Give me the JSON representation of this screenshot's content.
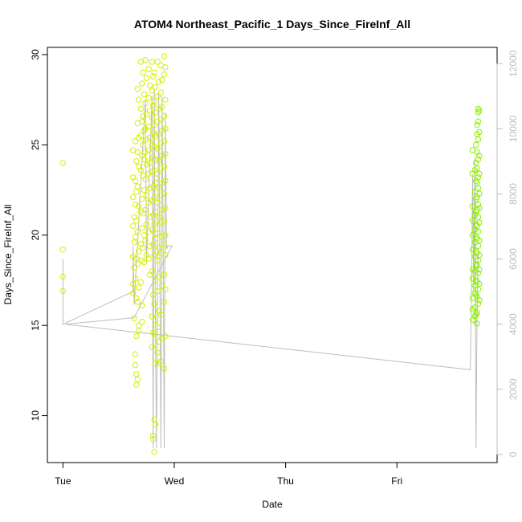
{
  "chart_data": {
    "type": "scatter",
    "title": "ATOM4 Northeast_Pacific_1 Days_Since_FireInf_All",
    "xlabel": "Date",
    "ylabel": "Days_Since_FireInf_All",
    "x_ticks": [
      "Tue",
      "Wed",
      "Thu",
      "Fri"
    ],
    "x_ticks_pos": [
      0,
      1,
      2,
      3
    ],
    "xlim": [
      -0.14,
      3.9
    ],
    "ylim": [
      7.4,
      30.4
    ],
    "y_ticks": [
      10,
      15,
      20,
      25,
      30
    ],
    "y2lim": [
      -250,
      12500
    ],
    "y2_ticks": [
      0,
      2000,
      4000,
      6000,
      8000,
      10000,
      12000
    ],
    "grid": false,
    "colors": {
      "points_early": "#d4f000",
      "points_late": "#8cee00",
      "secondary_line": "#bdbdbd"
    },
    "series": [
      {
        "points": [
          [
            0.0,
            24.0
          ],
          [
            0.0,
            19.2
          ],
          [
            0.0,
            17.7
          ],
          [
            0.0,
            16.9
          ],
          [
            0.63,
            24.7
          ],
          [
            0.63,
            23.2
          ],
          [
            0.63,
            22.1
          ],
          [
            0.64,
            21.0
          ],
          [
            0.63,
            20.5
          ],
          [
            0.64,
            19.6
          ],
          [
            0.63,
            18.8
          ],
          [
            0.64,
            18.2
          ],
          [
            0.63,
            17.3
          ],
          [
            0.63,
            16.8
          ],
          [
            0.64,
            15.4
          ],
          [
            0.65,
            25.2
          ],
          [
            0.66,
            24.1
          ],
          [
            0.65,
            23.0
          ],
          [
            0.66,
            22.4
          ],
          [
            0.65,
            21.7
          ],
          [
            0.66,
            20.8
          ],
          [
            0.65,
            19.9
          ],
          [
            0.66,
            18.7
          ],
          [
            0.65,
            17.6
          ],
          [
            0.66,
            16.5
          ],
          [
            0.66,
            14.4
          ],
          [
            0.65,
            12.8
          ],
          [
            0.66,
            12.3
          ],
          [
            0.66,
            11.7
          ],
          [
            0.65,
            13.4
          ],
          [
            0.67,
            28.1
          ],
          [
            0.68,
            27.5
          ],
          [
            0.67,
            26.2
          ],
          [
            0.68,
            25.4
          ],
          [
            0.67,
            24.6
          ],
          [
            0.68,
            23.8
          ],
          [
            0.67,
            22.7
          ],
          [
            0.68,
            21.6
          ],
          [
            0.67,
            20.2
          ],
          [
            0.68,
            19.1
          ],
          [
            0.67,
            18.4
          ],
          [
            0.68,
            17.1
          ],
          [
            0.67,
            16.3
          ],
          [
            0.68,
            15.0
          ],
          [
            0.68,
            14.7
          ],
          [
            0.67,
            12.0
          ],
          [
            0.7,
            29.6
          ],
          [
            0.71,
            28.4
          ],
          [
            0.7,
            27.0
          ],
          [
            0.71,
            26.3
          ],
          [
            0.7,
            25.5
          ],
          [
            0.71,
            24.4
          ],
          [
            0.7,
            23.6
          ],
          [
            0.71,
            22.0
          ],
          [
            0.7,
            21.3
          ],
          [
            0.71,
            20.4
          ],
          [
            0.7,
            19.5
          ],
          [
            0.71,
            18.6
          ],
          [
            0.7,
            17.4
          ],
          [
            0.71,
            16.1
          ],
          [
            0.71,
            15.2
          ],
          [
            0.72,
            29.0
          ],
          [
            0.73,
            27.8
          ],
          [
            0.72,
            26.6
          ],
          [
            0.73,
            25.8
          ],
          [
            0.72,
            25.0
          ],
          [
            0.73,
            24.2
          ],
          [
            0.72,
            23.3
          ],
          [
            0.73,
            22.5
          ],
          [
            0.72,
            21.2
          ],
          [
            0.73,
            20.0
          ],
          [
            0.72,
            19.3
          ],
          [
            0.73,
            18.5
          ],
          [
            0.74,
            29.7
          ],
          [
            0.75,
            28.7
          ],
          [
            0.74,
            27.3
          ],
          [
            0.75,
            26.7
          ],
          [
            0.74,
            25.9
          ],
          [
            0.75,
            25.3
          ],
          [
            0.74,
            24.6
          ],
          [
            0.75,
            23.9
          ],
          [
            0.74,
            23.1
          ],
          [
            0.75,
            22.2
          ],
          [
            0.74,
            21.4
          ],
          [
            0.75,
            20.6
          ],
          [
            0.74,
            19.7
          ],
          [
            0.75,
            18.9
          ],
          [
            0.77,
            29.2
          ],
          [
            0.78,
            28.3
          ],
          [
            0.77,
            27.6
          ],
          [
            0.78,
            26.9
          ],
          [
            0.77,
            26.0
          ],
          [
            0.78,
            25.4
          ],
          [
            0.77,
            24.7
          ],
          [
            0.78,
            24.0
          ],
          [
            0.77,
            23.4
          ],
          [
            0.78,
            22.6
          ],
          [
            0.77,
            21.8
          ],
          [
            0.78,
            21.0
          ],
          [
            0.77,
            20.2
          ],
          [
            0.78,
            19.4
          ],
          [
            0.77,
            18.7
          ],
          [
            0.78,
            17.8
          ],
          [
            0.8,
            29.6
          ],
          [
            0.81,
            28.8
          ],
          [
            0.8,
            28.0
          ],
          [
            0.81,
            27.2
          ],
          [
            0.8,
            26.5
          ],
          [
            0.81,
            25.7
          ],
          [
            0.8,
            25.0
          ],
          [
            0.81,
            24.3
          ],
          [
            0.8,
            23.5
          ],
          [
            0.81,
            22.7
          ],
          [
            0.8,
            21.9
          ],
          [
            0.81,
            21.1
          ],
          [
            0.8,
            20.3
          ],
          [
            0.81,
            19.5
          ],
          [
            0.8,
            18.0
          ],
          [
            0.81,
            16.7
          ],
          [
            0.8,
            15.5
          ],
          [
            0.81,
            14.6
          ],
          [
            0.8,
            13.8
          ],
          [
            0.81,
            8.9
          ],
          [
            0.81,
            8.7
          ],
          [
            0.82,
            29.0
          ],
          [
            0.83,
            28.2
          ],
          [
            0.82,
            27.4
          ],
          [
            0.83,
            26.8
          ],
          [
            0.82,
            26.1
          ],
          [
            0.83,
            25.5
          ],
          [
            0.82,
            24.9
          ],
          [
            0.83,
            24.2
          ],
          [
            0.82,
            23.6
          ],
          [
            0.83,
            22.9
          ],
          [
            0.82,
            22.1
          ],
          [
            0.83,
            21.3
          ],
          [
            0.82,
            20.6
          ],
          [
            0.83,
            19.8
          ],
          [
            0.82,
            18.9
          ],
          [
            0.83,
            17.5
          ],
          [
            0.82,
            16.2
          ],
          [
            0.83,
            15.3
          ],
          [
            0.82,
            14.5
          ],
          [
            0.83,
            12.9
          ],
          [
            0.82,
            9.8
          ],
          [
            0.83,
            9.5
          ],
          [
            0.82,
            8.0
          ],
          [
            0.85,
            29.6
          ],
          [
            0.86,
            28.5
          ],
          [
            0.85,
            27.7
          ],
          [
            0.86,
            27.0
          ],
          [
            0.85,
            26.3
          ],
          [
            0.86,
            25.6
          ],
          [
            0.85,
            24.8
          ],
          [
            0.86,
            24.1
          ],
          [
            0.85,
            23.4
          ],
          [
            0.86,
            22.6
          ],
          [
            0.85,
            21.8
          ],
          [
            0.86,
            21.0
          ],
          [
            0.85,
            20.1
          ],
          [
            0.86,
            19.3
          ],
          [
            0.85,
            18.6
          ],
          [
            0.86,
            17.7
          ],
          [
            0.85,
            16.9
          ],
          [
            0.86,
            15.8
          ],
          [
            0.85,
            14.9
          ],
          [
            0.86,
            14.1
          ],
          [
            0.85,
            13.5
          ],
          [
            0.86,
            12.9
          ],
          [
            0.88,
            29.4
          ],
          [
            0.89,
            28.6
          ],
          [
            0.88,
            27.9
          ],
          [
            0.89,
            27.1
          ],
          [
            0.88,
            26.4
          ],
          [
            0.89,
            25.8
          ],
          [
            0.88,
            25.1
          ],
          [
            0.89,
            24.4
          ],
          [
            0.88,
            23.7
          ],
          [
            0.89,
            22.9
          ],
          [
            0.88,
            22.2
          ],
          [
            0.89,
            21.4
          ],
          [
            0.88,
            20.7
          ],
          [
            0.89,
            19.9
          ],
          [
            0.88,
            19.0
          ],
          [
            0.89,
            17.2
          ],
          [
            0.88,
            15.6
          ],
          [
            0.89,
            14.3
          ],
          [
            0.88,
            13.0
          ],
          [
            0.91,
            29.9
          ],
          [
            0.92,
            29.3
          ],
          [
            0.91,
            28.9
          ],
          [
            0.92,
            27.5
          ],
          [
            0.91,
            26.6
          ],
          [
            0.92,
            25.9
          ],
          [
            0.91,
            25.2
          ],
          [
            0.92,
            24.5
          ],
          [
            0.91,
            23.8
          ],
          [
            0.92,
            23.0
          ],
          [
            0.91,
            22.3
          ],
          [
            0.92,
            21.5
          ],
          [
            0.91,
            20.8
          ],
          [
            0.92,
            20.0
          ],
          [
            0.91,
            19.5
          ],
          [
            0.92,
            18.9
          ],
          [
            0.91,
            17.8
          ],
          [
            0.92,
            17.0
          ],
          [
            0.91,
            16.3
          ],
          [
            0.92,
            14.4
          ],
          [
            0.91,
            12.6
          ]
        ]
      },
      {
        "points": [
          [
            3.68,
            24.7
          ],
          [
            3.68,
            23.4
          ],
          [
            3.68,
            21.6
          ],
          [
            3.68,
            20.8
          ],
          [
            3.68,
            20.0
          ],
          [
            3.68,
            19.2
          ],
          [
            3.68,
            18.1
          ],
          [
            3.68,
            17.6
          ],
          [
            3.68,
            16.5
          ],
          [
            3.68,
            15.9
          ],
          [
            3.68,
            15.3
          ],
          [
            3.7,
            23.6
          ],
          [
            3.7,
            22.4
          ],
          [
            3.7,
            21.1
          ],
          [
            3.7,
            20.3
          ],
          [
            3.7,
            19.6
          ],
          [
            3.7,
            18.8
          ],
          [
            3.7,
            18.0
          ],
          [
            3.7,
            17.2
          ],
          [
            3.7,
            16.8
          ],
          [
            3.7,
            16.0
          ],
          [
            3.7,
            15.5
          ],
          [
            3.71,
            25.0
          ],
          [
            3.71,
            24.0
          ],
          [
            3.71,
            23.0
          ],
          [
            3.71,
            22.0
          ],
          [
            3.71,
            21.3
          ],
          [
            3.71,
            20.6
          ],
          [
            3.71,
            19.9
          ],
          [
            3.71,
            19.1
          ],
          [
            3.71,
            18.4
          ],
          [
            3.71,
            17.5
          ],
          [
            3.71,
            16.7
          ],
          [
            3.71,
            15.6
          ],
          [
            3.72,
            26.1
          ],
          [
            3.72,
            25.6
          ],
          [
            3.72,
            24.6
          ],
          [
            3.72,
            23.7
          ],
          [
            3.72,
            22.9
          ],
          [
            3.72,
            22.1
          ],
          [
            3.72,
            21.4
          ],
          [
            3.72,
            20.5
          ],
          [
            3.72,
            19.8
          ],
          [
            3.72,
            19.0
          ],
          [
            3.72,
            18.3
          ],
          [
            3.72,
            17.4
          ],
          [
            3.72,
            16.6
          ],
          [
            3.72,
            15.7
          ],
          [
            3.72,
            15.1
          ],
          [
            3.73,
            27.0
          ],
          [
            3.73,
            26.8
          ],
          [
            3.73,
            26.3
          ],
          [
            3.73,
            25.3
          ],
          [
            3.73,
            24.2
          ],
          [
            3.73,
            23.2
          ],
          [
            3.73,
            22.6
          ],
          [
            3.73,
            21.7
          ],
          [
            3.73,
            21.0
          ],
          [
            3.73,
            20.2
          ],
          [
            3.73,
            19.4
          ],
          [
            3.73,
            18.6
          ],
          [
            3.73,
            17.9
          ],
          [
            3.73,
            17.0
          ],
          [
            3.73,
            16.2
          ],
          [
            3.74,
            26.9
          ],
          [
            3.74,
            25.7
          ],
          [
            3.74,
            24.4
          ],
          [
            3.74,
            23.4
          ],
          [
            3.74,
            22.3
          ],
          [
            3.74,
            21.5
          ],
          [
            3.74,
            20.7
          ],
          [
            3.74,
            19.7
          ],
          [
            3.74,
            18.9
          ],
          [
            3.74,
            18.1
          ],
          [
            3.74,
            17.3
          ],
          [
            3.74,
            16.4
          ]
        ]
      }
    ],
    "secondary_line": {
      "points": [
        [
          0.0,
          6000
        ],
        [
          0.0,
          4000
        ],
        [
          0.63,
          5000
        ],
        [
          0.63,
          6400
        ],
        [
          0.64,
          4600
        ],
        [
          0.74,
          10900
        ],
        [
          0.75,
          5900
        ],
        [
          0.8,
          11000
        ],
        [
          0.81,
          200
        ],
        [
          0.82,
          11200
        ],
        [
          0.83,
          4200
        ],
        [
          0.84,
          200
        ],
        [
          0.86,
          11100
        ],
        [
          0.87,
          6200
        ],
        [
          0.88,
          200
        ],
        [
          0.89,
          11000
        ],
        [
          0.9,
          6300
        ],
        [
          0.91,
          200
        ],
        [
          0.92,
          10500
        ],
        [
          0.93,
          6300
        ],
        [
          0.94,
          6400
        ],
        [
          0.98,
          6400
        ],
        [
          0.64,
          4200
        ],
        [
          0.02,
          4000
        ],
        [
          3.66,
          2600
        ],
        [
          3.67,
          5000
        ],
        [
          3.68,
          8600
        ],
        [
          3.69,
          5000
        ],
        [
          3.7,
          9100
        ],
        [
          3.71,
          200
        ],
        [
          3.72,
          4200
        ],
        [
          3.73,
          6200
        ]
      ]
    }
  }
}
